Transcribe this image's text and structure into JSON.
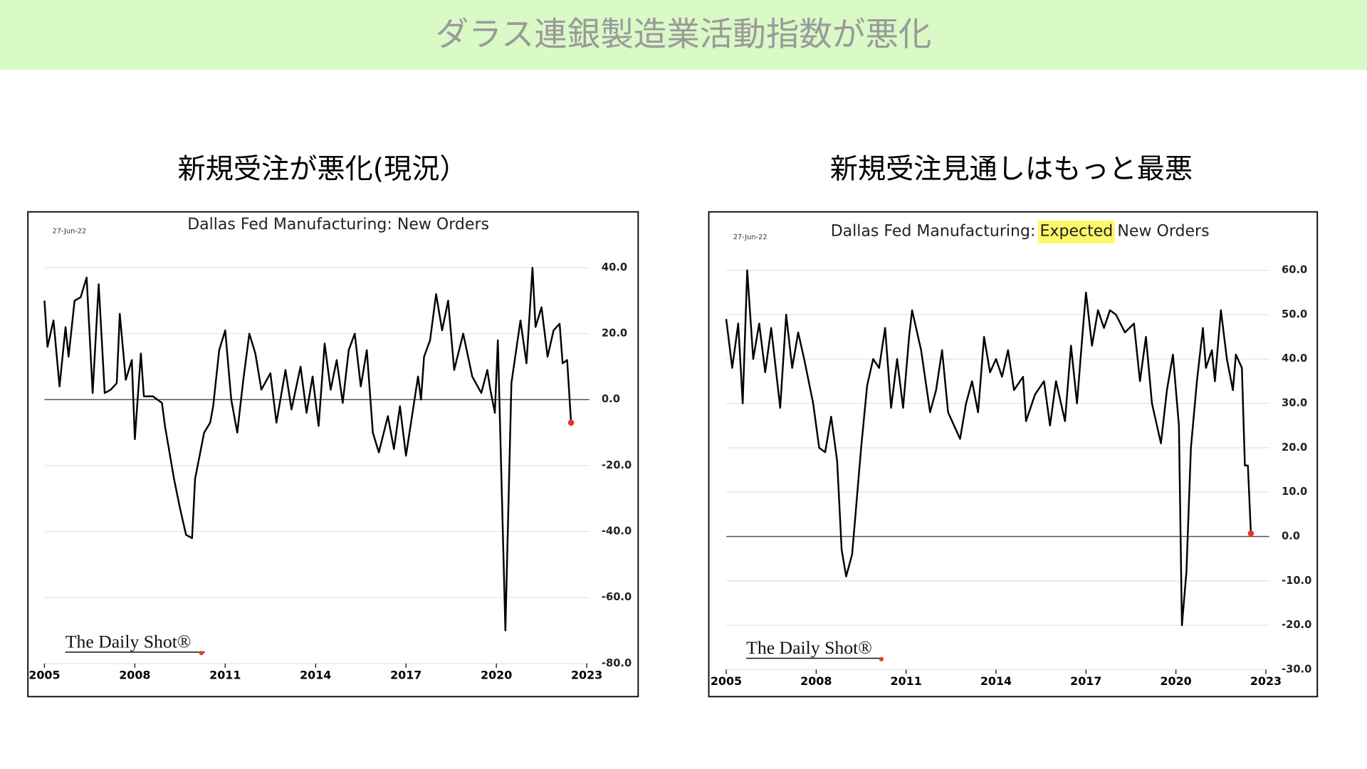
{
  "title": "ダラス連銀製造業活動指数が悪化",
  "chart_data": [
    {
      "type": "line",
      "heading": "新規受注が悪化(現況）",
      "title": "Dallas Fed Manufacturing: New Orders",
      "date": "27-Jun-22",
      "source": "The Daily Shot®",
      "x": [
        2005.0,
        2005.1,
        2005.3,
        2005.5,
        2005.7,
        2005.8,
        2006.0,
        2006.2,
        2006.4,
        2006.6,
        2006.8,
        2007.0,
        2007.2,
        2007.4,
        2007.5,
        2007.7,
        2007.9,
        2008.0,
        2008.2,
        2008.3,
        2008.6,
        2008.9,
        2009.0,
        2009.3,
        2009.5,
        2009.7,
        2009.9,
        2010.0,
        2010.3,
        2010.5,
        2010.6,
        2010.8,
        2011.0,
        2011.2,
        2011.4,
        2011.6,
        2011.8,
        2012.0,
        2012.2,
        2012.5,
        2012.7,
        2013.0,
        2013.2,
        2013.5,
        2013.7,
        2013.9,
        2014.1,
        2014.3,
        2014.5,
        2014.7,
        2014.9,
        2015.1,
        2015.3,
        2015.5,
        2015.7,
        2015.9,
        2016.1,
        2016.4,
        2016.6,
        2016.8,
        2017.0,
        2017.2,
        2017.4,
        2017.5,
        2017.6,
        2017.8,
        2018.0,
        2018.2,
        2018.4,
        2018.6,
        2018.9,
        2019.2,
        2019.5,
        2019.7,
        2019.8,
        2019.95,
        2020.05,
        2020.3,
        2020.5,
        2020.8,
        2021.0,
        2021.2,
        2021.3,
        2021.5,
        2021.7,
        2021.9,
        2022.1,
        2022.2,
        2022.35,
        2022.48
      ],
      "series": [
        {
          "color": "#000000",
          "values": [
            30,
            16,
            24,
            4,
            22,
            13,
            30,
            31,
            37,
            2,
            35,
            2,
            3,
            5,
            26,
            6,
            12,
            -12,
            14,
            1,
            1,
            -1,
            -8,
            -24,
            -33,
            -41,
            -42,
            -24,
            -10,
            -7,
            -2,
            15,
            21,
            0,
            -10,
            6,
            20,
            14,
            3,
            8,
            -7,
            9,
            -3,
            10,
            -4,
            7,
            -8,
            17,
            3,
            12,
            -1,
            15,
            20,
            4,
            15,
            -10,
            -16,
            -5,
            -15,
            -2,
            -17,
            -5,
            7,
            0,
            13,
            18,
            32,
            21,
            30,
            9,
            20,
            7,
            2,
            9,
            3,
            -4,
            18,
            -70,
            5,
            24,
            11,
            40,
            22,
            28,
            13,
            21,
            23,
            11,
            12,
            -7
          ]
        }
      ],
      "last_point_color": "#e0392b",
      "xlim": [
        2005,
        2023
      ],
      "xticks": [
        2005,
        2008,
        2011,
        2014,
        2017,
        2020,
        2023
      ],
      "ylim": [
        -80,
        40
      ],
      "yticks": [
        {
          "value": -80,
          "label": "-80.0"
        },
        {
          "value": -60,
          "label": "-60.0"
        },
        {
          "value": -40,
          "label": "-40.0"
        },
        {
          "value": -20,
          "label": "-20.0"
        },
        {
          "value": 0,
          "label": "0.0"
        },
        {
          "value": 20,
          "label": "20.0"
        },
        {
          "value": 40,
          "label": "40.0"
        }
      ],
      "grid": true
    },
    {
      "type": "line",
      "heading": "新規受注見通しはもっと最悪",
      "title_parts": [
        "Dallas Fed Manufacturing:",
        "Expected",
        "New Orders"
      ],
      "highlight_color": "#fdf86a",
      "date": "27-Jun-22",
      "source": "The Daily Shot®",
      "x": [
        2005.0,
        2005.2,
        2005.4,
        2005.55,
        2005.7,
        2005.9,
        2006.1,
        2006.3,
        2006.5,
        2006.8,
        2007.0,
        2007.2,
        2007.4,
        2007.6,
        2007.9,
        2008.1,
        2008.3,
        2008.5,
        2008.7,
        2008.85,
        2009.0,
        2009.2,
        2009.5,
        2009.7,
        2009.9,
        2010.1,
        2010.3,
        2010.5,
        2010.7,
        2010.9,
        2011.1,
        2011.2,
        2011.5,
        2011.8,
        2012.0,
        2012.2,
        2012.4,
        2012.6,
        2012.8,
        2013.0,
        2013.2,
        2013.4,
        2013.6,
        2013.8,
        2014.0,
        2014.2,
        2014.4,
        2014.6,
        2014.9,
        2015.0,
        2015.3,
        2015.6,
        2015.8,
        2016.0,
        2016.3,
        2016.5,
        2016.7,
        2016.9,
        2017.0,
        2017.2,
        2017.4,
        2017.6,
        2017.8,
        2018.0,
        2018.3,
        2018.6,
        2018.8,
        2019.0,
        2019.2,
        2019.5,
        2019.7,
        2019.9,
        2020.1,
        2020.2,
        2020.35,
        2020.5,
        2020.7,
        2020.9,
        2021.0,
        2021.2,
        2021.3,
        2021.5,
        2021.7,
        2021.9,
        2022.0,
        2022.2,
        2022.3,
        2022.4,
        2022.5
      ],
      "series": [
        {
          "color": "#000000",
          "values": [
            49,
            38,
            48,
            30,
            60,
            40,
            48,
            37,
            47,
            29,
            50,
            38,
            46,
            40,
            30,
            20,
            19,
            27,
            17,
            -3,
            -9,
            -4,
            20,
            34,
            40,
            38,
            47,
            29,
            40,
            29,
            45,
            51,
            42,
            28,
            33,
            42,
            28,
            25,
            22,
            30,
            35,
            28,
            45,
            37,
            40,
            36,
            42,
            33,
            36,
            26,
            32,
            35,
            25,
            35,
            26,
            43,
            30,
            47,
            55,
            43,
            51,
            47,
            51,
            50,
            46,
            48,
            35,
            45,
            30,
            21,
            33,
            41,
            25,
            -20,
            -8,
            20,
            35,
            47,
            38,
            42,
            35,
            51,
            40,
            33,
            41,
            38,
            16,
            16,
            0.7
          ]
        }
      ],
      "last_point_color": "#e0392b",
      "xlim": [
        2005,
        2023
      ],
      "xticks": [
        2005,
        2008,
        2011,
        2014,
        2017,
        2020,
        2023
      ],
      "ylim": [
        -30,
        60
      ],
      "yticks": [
        {
          "value": -30,
          "label": "-30.0"
        },
        {
          "value": -20,
          "label": "-20.0"
        },
        {
          "value": -10,
          "label": "-10.0"
        },
        {
          "value": 0,
          "label": "0.0"
        },
        {
          "value": 10,
          "label": "10.0"
        },
        {
          "value": 20,
          "label": "20.0"
        },
        {
          "value": 30,
          "label": "30.0"
        },
        {
          "value": 40,
          "label": "40.0"
        },
        {
          "value": 50,
          "label": "50.0"
        },
        {
          "value": 60,
          "label": "60.0"
        }
      ],
      "grid": true
    }
  ]
}
